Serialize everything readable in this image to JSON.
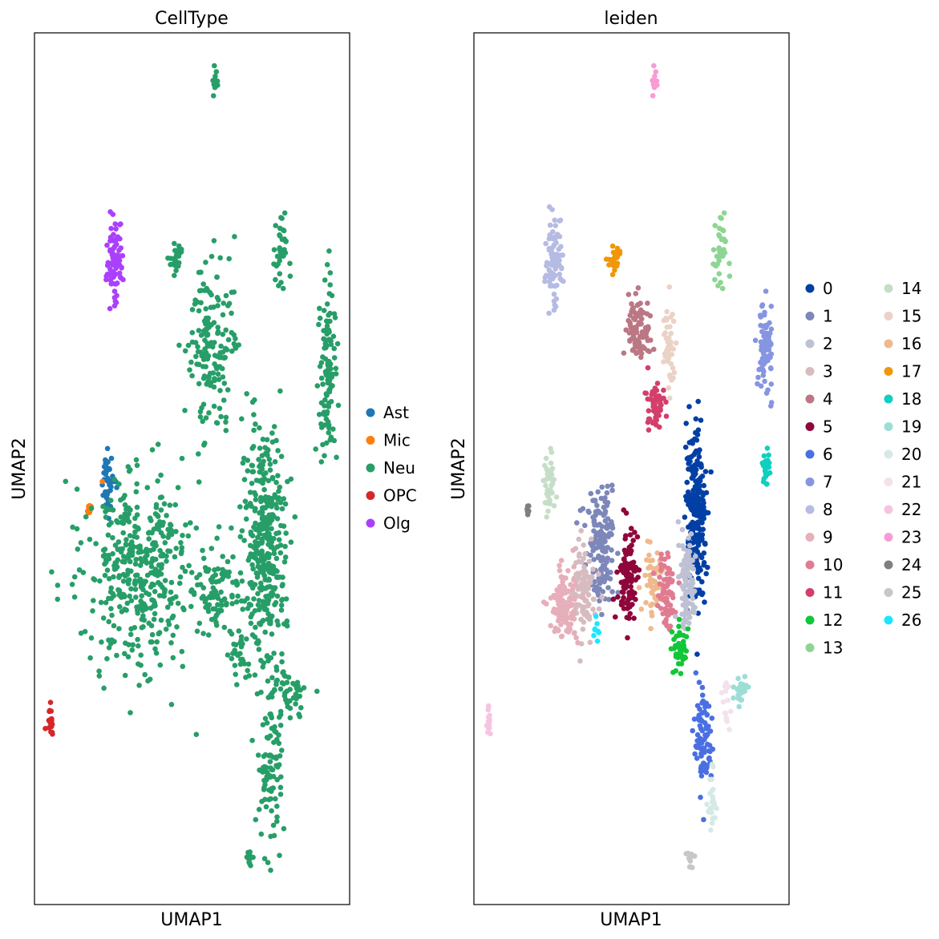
{
  "chart_data": [
    {
      "type": "scatter",
      "title": "CellType",
      "xlabel": "UMAP1",
      "ylabel": "UMAP2",
      "grid": false,
      "ticks": false,
      "xlim": [
        0,
        100
      ],
      "ylim": [
        0,
        100
      ],
      "legend": {
        "position": "right",
        "columns": 1,
        "entries": [
          {
            "label": "Ast",
            "color": "#1f77b4"
          },
          {
            "label": "Mic",
            "color": "#ff7f0e"
          },
          {
            "label": "Neu",
            "color": "#279e68"
          },
          {
            "label": "OPC",
            "color": "#d62728"
          },
          {
            "label": "Olg",
            "color": "#aa40fc"
          }
        ]
      },
      "groups": [
        {
          "label": "Neu",
          "color": "#279e68",
          "x": 57.5,
          "y": 94.4,
          "sx": 0.5,
          "sy": 0.8,
          "n": 12
        },
        {
          "label": "Olg",
          "color": "#aa40fc",
          "x": 25.5,
          "y": 73.7,
          "sx": 1.2,
          "sy": 2.0,
          "n": 90
        },
        {
          "label": "Neu",
          "color": "#279e68",
          "x": 45.0,
          "y": 74.0,
          "sx": 1.0,
          "sy": 0.9,
          "n": 25
        },
        {
          "label": "Neu",
          "color": "#279e68",
          "x": 78.4,
          "y": 74.9,
          "sx": 1.2,
          "sy": 2.3,
          "n": 40
        },
        {
          "label": "Neu",
          "color": "#279e68",
          "x": 55.6,
          "y": 64.4,
          "sx": 4.0,
          "sy": 4.5,
          "n": 160
        },
        {
          "label": "Neu",
          "color": "#279e68",
          "x": 93.0,
          "y": 62.0,
          "sx": 1.5,
          "sy": 4.8,
          "n": 110
        },
        {
          "label": "Ast",
          "color": "#1f77b4",
          "x": 23.4,
          "y": 48.3,
          "sx": 1.0,
          "sy": 2.0,
          "n": 40
        },
        {
          "label": "Mic",
          "color": "#ff7f0e",
          "x": 17.2,
          "y": 45.3,
          "sx": 0.4,
          "sy": 0.5,
          "n": 8
        },
        {
          "label": "Mic",
          "color": "#ff7f0e",
          "x": 21.3,
          "y": 48.4,
          "sx": 0.2,
          "sy": 0.2,
          "n": 1
        },
        {
          "label": "Neu",
          "color": "#279e68",
          "x": 33.0,
          "y": 38.0,
          "sx": 9.0,
          "sy": 5.5,
          "n": 420
        },
        {
          "label": "Neu",
          "color": "#279e68",
          "x": 73.0,
          "y": 41.5,
          "sx": 3.5,
          "sy": 7.0,
          "n": 380
        },
        {
          "label": "Neu",
          "color": "#279e68",
          "x": 57.0,
          "y": 36.0,
          "sx": 4.0,
          "sy": 2.5,
          "n": 90
        },
        {
          "label": "Neu",
          "color": "#279e68",
          "x": 65.0,
          "y": 29.0,
          "sx": 1.5,
          "sy": 1.5,
          "n": 30
        },
        {
          "label": "OPC",
          "color": "#d62728",
          "x": 5.0,
          "y": 21.0,
          "sx": 0.5,
          "sy": 1.0,
          "n": 18
        },
        {
          "label": "Neu",
          "color": "#279e68",
          "x": 80.5,
          "y": 24.0,
          "sx": 3.0,
          "sy": 1.5,
          "n": 45
        },
        {
          "label": "Neu",
          "color": "#279e68",
          "x": 75.0,
          "y": 15.5,
          "sx": 2.0,
          "sy": 5.0,
          "n": 90
        },
        {
          "label": "Neu",
          "color": "#279e68",
          "x": 68.5,
          "y": 5.0,
          "sx": 0.6,
          "sy": 0.5,
          "n": 12
        }
      ]
    },
    {
      "type": "scatter",
      "title": "leiden",
      "xlabel": "UMAP1",
      "ylabel": "UMAP2",
      "grid": false,
      "ticks": false,
      "xlim": [
        0,
        100
      ],
      "ylim": [
        0,
        100
      ],
      "legend": {
        "position": "right",
        "columns": 2,
        "entries": [
          {
            "label": "0",
            "color": "#023fa5"
          },
          {
            "label": "1",
            "color": "#7d87b9"
          },
          {
            "label": "2",
            "color": "#bec1d4"
          },
          {
            "label": "3",
            "color": "#d6bcc0"
          },
          {
            "label": "4",
            "color": "#bb7784"
          },
          {
            "label": "5",
            "color": "#8e063b"
          },
          {
            "label": "6",
            "color": "#4a6fe3"
          },
          {
            "label": "7",
            "color": "#8595e1"
          },
          {
            "label": "8",
            "color": "#b5bbe3"
          },
          {
            "label": "9",
            "color": "#e6afb9"
          },
          {
            "label": "10",
            "color": "#e07b91"
          },
          {
            "label": "11",
            "color": "#d33f6a"
          },
          {
            "label": "12",
            "color": "#11c638"
          },
          {
            "label": "13",
            "color": "#8dd593"
          },
          {
            "label": "14",
            "color": "#c6dec7"
          },
          {
            "label": "15",
            "color": "#ead3c6"
          },
          {
            "label": "16",
            "color": "#f0b98d"
          },
          {
            "label": "17",
            "color": "#ef9708"
          },
          {
            "label": "18",
            "color": "#0fcfc0"
          },
          {
            "label": "19",
            "color": "#9cded6"
          },
          {
            "label": "20",
            "color": "#d5eae7"
          },
          {
            "label": "21",
            "color": "#f3e1eb"
          },
          {
            "label": "22",
            "color": "#f6c4e1"
          },
          {
            "label": "23",
            "color": "#f79cd4"
          },
          {
            "label": "24",
            "color": "#7f7f7f"
          },
          {
            "label": "25",
            "color": "#c7c7c7"
          },
          {
            "label": "26",
            "color": "#1ce6ff"
          }
        ]
      },
      "groups": [
        {
          "label": "23",
          "color": "#f79cd4",
          "x": 57.5,
          "y": 94.4,
          "sx": 0.5,
          "sy": 0.8,
          "n": 12
        },
        {
          "label": "8",
          "color": "#b5bbe3",
          "x": 25.5,
          "y": 73.7,
          "sx": 1.3,
          "sy": 2.2,
          "n": 90
        },
        {
          "label": "17",
          "color": "#ef9708",
          "x": 44.7,
          "y": 73.9,
          "sx": 1.0,
          "sy": 0.8,
          "n": 25
        },
        {
          "label": "13",
          "color": "#8dd593",
          "x": 78.4,
          "y": 74.9,
          "sx": 1.2,
          "sy": 2.3,
          "n": 40
        },
        {
          "label": "4",
          "color": "#bb7784",
          "x": 52.4,
          "y": 65.7,
          "sx": 1.8,
          "sy": 2.2,
          "n": 90
        },
        {
          "label": "15",
          "color": "#ead3c6",
          "x": 61.7,
          "y": 64.0,
          "sx": 1.0,
          "sy": 3.0,
          "n": 45
        },
        {
          "label": "11",
          "color": "#d33f6a",
          "x": 57.6,
          "y": 57.0,
          "sx": 1.5,
          "sy": 1.5,
          "n": 55
        },
        {
          "label": "7",
          "color": "#8595e1",
          "x": 92.6,
          "y": 63.6,
          "sx": 1.3,
          "sy": 3.0,
          "n": 85
        },
        {
          "label": "18",
          "color": "#0fcfc0",
          "x": 92.6,
          "y": 50.3,
          "sx": 0.6,
          "sy": 1.2,
          "n": 25
        },
        {
          "label": "14",
          "color": "#c6dec7",
          "x": 23.5,
          "y": 48.0,
          "sx": 0.9,
          "sy": 1.8,
          "n": 40
        },
        {
          "label": "24",
          "color": "#7f7f7f",
          "x": 17.0,
          "y": 45.2,
          "sx": 0.3,
          "sy": 0.4,
          "n": 8
        },
        {
          "label": "1",
          "color": "#7d87b9",
          "x": 40.5,
          "y": 41.0,
          "sx": 2.5,
          "sy": 3.0,
          "n": 150
        },
        {
          "label": "3",
          "color": "#d6bcc0",
          "x": 34.7,
          "y": 36.0,
          "sx": 2.0,
          "sy": 2.5,
          "n": 100
        },
        {
          "label": "9",
          "color": "#e6afb9",
          "x": 28.5,
          "y": 34.2,
          "sx": 2.2,
          "sy": 2.0,
          "n": 110
        },
        {
          "label": "5",
          "color": "#8e063b",
          "x": 48.6,
          "y": 37.5,
          "sx": 1.6,
          "sy": 3.0,
          "n": 100
        },
        {
          "label": "16",
          "color": "#f0b98d",
          "x": 57.3,
          "y": 37.2,
          "sx": 1.7,
          "sy": 1.8,
          "n": 55
        },
        {
          "label": "10",
          "color": "#e07b91",
          "x": 61.0,
          "y": 35.8,
          "sx": 1.3,
          "sy": 2.5,
          "n": 70
        },
        {
          "label": "0",
          "color": "#023fa5",
          "x": 70.5,
          "y": 45.0,
          "sx": 1.6,
          "sy": 4.8,
          "n": 220
        },
        {
          "label": "2",
          "color": "#bec1d4",
          "x": 67.7,
          "y": 37.0,
          "sx": 1.4,
          "sy": 2.8,
          "n": 100
        },
        {
          "label": "12",
          "color": "#11c638",
          "x": 65.3,
          "y": 29.2,
          "sx": 1.2,
          "sy": 1.4,
          "n": 40
        },
        {
          "label": "26",
          "color": "#1ce6ff",
          "x": 39.0,
          "y": 31.5,
          "sx": 0.4,
          "sy": 0.9,
          "n": 8
        },
        {
          "label": "22",
          "color": "#f6c4e1",
          "x": 4.8,
          "y": 21.0,
          "sx": 0.4,
          "sy": 1.0,
          "n": 15
        },
        {
          "label": "21",
          "color": "#f3e1eb",
          "x": 80.5,
          "y": 23.5,
          "sx": 0.8,
          "sy": 1.5,
          "n": 15
        },
        {
          "label": "19",
          "color": "#9cded6",
          "x": 85.0,
          "y": 24.5,
          "sx": 1.3,
          "sy": 0.8,
          "n": 25
        },
        {
          "label": "6",
          "color": "#4a6fe3",
          "x": 72.7,
          "y": 19.0,
          "sx": 1.3,
          "sy": 2.8,
          "n": 80
        },
        {
          "label": "20",
          "color": "#d5eae7",
          "x": 75.5,
          "y": 11.5,
          "sx": 0.6,
          "sy": 2.3,
          "n": 25
        },
        {
          "label": "25",
          "color": "#c7c7c7",
          "x": 68.5,
          "y": 5.0,
          "sx": 0.6,
          "sy": 0.5,
          "n": 12
        }
      ]
    }
  ]
}
